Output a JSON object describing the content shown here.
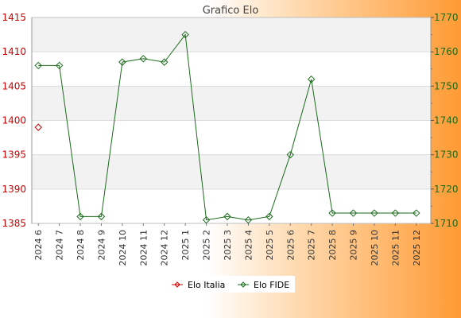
{
  "chart_data": {
    "type": "line",
    "title": "Grafico Elo",
    "categories": [
      "2024 6",
      "2024 7",
      "2024 8",
      "2024 9",
      "2024 10",
      "2024 11",
      "2024 12",
      "2025 1",
      "2025 2",
      "2025 3",
      "2025 4",
      "2025 5",
      "2025 6",
      "2025 7",
      "2025 8",
      "2025 9",
      "2025 10",
      "2025 11",
      "2025 12"
    ],
    "axes": {
      "left": {
        "min": 1385,
        "max": 1415,
        "ticks": [
          1385,
          1390,
          1395,
          1400,
          1405,
          1410,
          1415
        ],
        "color": "#cc0000"
      },
      "right": {
        "min": 1710,
        "max": 1770,
        "ticks": [
          1710,
          1720,
          1730,
          1740,
          1750,
          1760,
          1770
        ],
        "color": "#1a6b1a"
      }
    },
    "grid": true,
    "legend_position": "bottom-center",
    "series": [
      {
        "name": "Elo Italia",
        "axis": "left",
        "color": "#cc0000",
        "values": [
          1399,
          null,
          null,
          null,
          null,
          null,
          null,
          null,
          null,
          null,
          null,
          null,
          null,
          null,
          null,
          null,
          null,
          null,
          null
        ]
      },
      {
        "name": "Elo FIDE",
        "axis": "right",
        "color": "#1a6b1a",
        "values": [
          1756,
          1756,
          1712,
          1712,
          1757,
          1758,
          1757,
          1765,
          1711,
          1712,
          1711,
          1712,
          1730,
          1752,
          1713,
          1713,
          1713,
          1713,
          1713
        ]
      }
    ]
  }
}
